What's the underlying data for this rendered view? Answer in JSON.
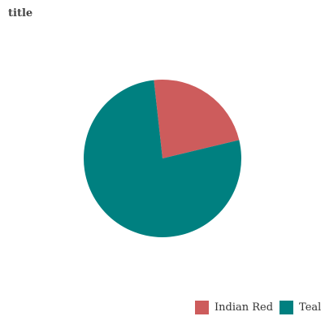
{
  "chart_data": {
    "type": "pie",
    "title": "title",
    "categories": [
      "Indian Red",
      "Teal"
    ],
    "values": [
      23,
      77
    ],
    "colors": [
      "#cd5c5c",
      "#008080"
    ],
    "legend": "bottom-right"
  }
}
